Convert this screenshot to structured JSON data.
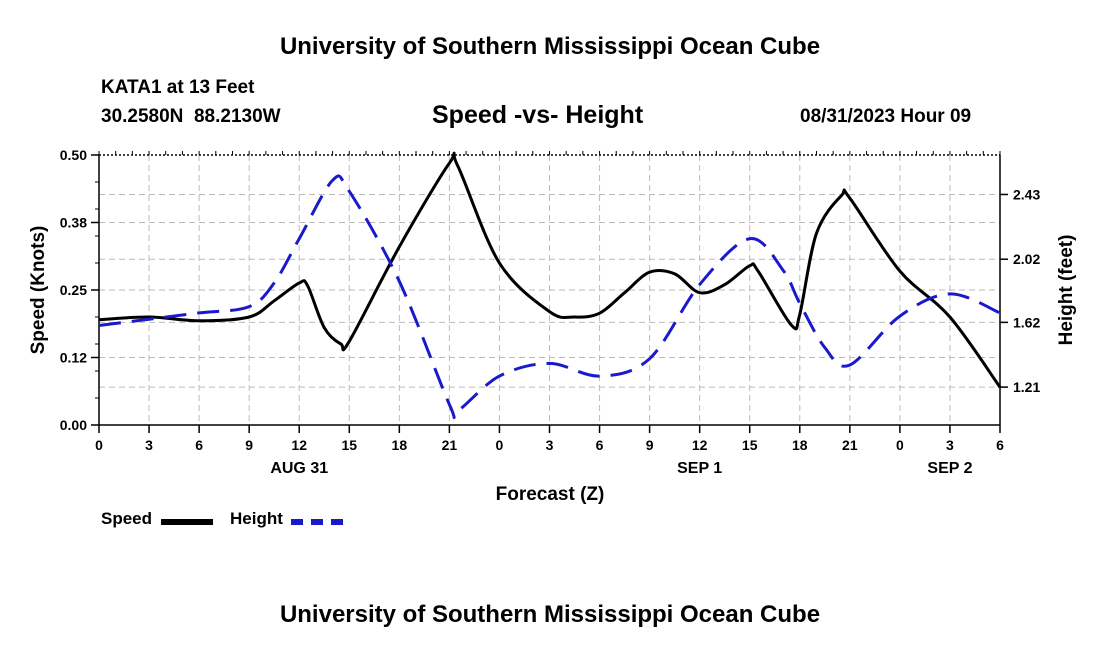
{
  "page": {
    "title_top": "University of Southern Mississippi Ocean Cube",
    "title_bottom": "University of Southern Mississippi Ocean Cube",
    "station": "KATA1 at 13 Feet",
    "coords": "30.2580N  88.2130W",
    "subtitle": "Speed -vs- Height",
    "datetime": "08/31/2023 Hour 09"
  },
  "legend": {
    "speed_label": "Speed",
    "height_label": "Height"
  },
  "colors": {
    "speed": "#000000",
    "height": "#1a1acc",
    "grid": "#bbbbbb"
  },
  "chart_data": {
    "type": "line",
    "title": "Speed -vs- Height",
    "xlabel": "Forecast (Z)",
    "ylabel": "Speed (Knots)",
    "y2label": "Height (feet)",
    "x_unit": "hours since Aug 31 00Z",
    "xlim": [
      0,
      54
    ],
    "ylim": [
      0,
      0.5
    ],
    "y2lim": [
      0.97,
      2.68
    ],
    "x_ticks": [
      0,
      3,
      6,
      9,
      12,
      15,
      18,
      21,
      24,
      27,
      30,
      33,
      36,
      39,
      42,
      45,
      48,
      51,
      54
    ],
    "x_tick_labels": [
      "0",
      "3",
      "6",
      "9",
      "12",
      "15",
      "18",
      "21",
      "0",
      "3",
      "6",
      "9",
      "12",
      "15",
      "18",
      "21",
      "0",
      "3",
      "6"
    ],
    "date_labels": [
      {
        "x": 12,
        "label": "AUG 31"
      },
      {
        "x": 36,
        "label": "SEP 1"
      },
      {
        "x": 51,
        "label": "SEP 2"
      }
    ],
    "y_ticks": [
      0,
      0.125,
      0.25,
      0.375,
      0.5
    ],
    "y_tick_labels": [
      "0.00",
      "0.12",
      "0.25",
      "0.38",
      "0.50"
    ],
    "y2_ticks": [
      1.21,
      1.62,
      2.02,
      2.43
    ],
    "y2_tick_labels": [
      "1.21",
      "1.62",
      "2.02",
      "2.43"
    ],
    "series": [
      {
        "name": "Speed",
        "axis": "left",
        "style": "solid",
        "x": [
          0,
          3,
          6,
          9,
          10.5,
          12,
          12.5,
          13.5,
          14.5,
          15,
          18,
          21,
          21.5,
          24,
          27,
          28.5,
          30,
          31.5,
          33,
          34.5,
          36,
          37.5,
          39,
          39.5,
          41.5,
          42,
          43,
          44.5,
          45,
          48,
          51,
          54
        ],
        "values": [
          0.195,
          0.2,
          0.193,
          0.2,
          0.23,
          0.263,
          0.258,
          0.18,
          0.15,
          0.155,
          0.33,
          0.485,
          0.48,
          0.3,
          0.21,
          0.2,
          0.207,
          0.245,
          0.283,
          0.28,
          0.245,
          0.26,
          0.295,
          0.285,
          0.185,
          0.205,
          0.355,
          0.425,
          0.42,
          0.285,
          0.2,
          0.07
        ]
      },
      {
        "name": "Height",
        "axis": "right",
        "style": "dashed",
        "x": [
          0,
          3,
          6,
          9,
          10.5,
          12,
          14,
          15,
          18,
          21,
          21.5,
          24,
          27,
          30,
          33,
          36,
          39,
          41,
          42,
          43.5,
          45,
          48,
          51,
          54
        ],
        "values": [
          1.6,
          1.64,
          1.68,
          1.72,
          1.87,
          2.15,
          2.52,
          2.45,
          1.88,
          1.1,
          1.06,
          1.28,
          1.36,
          1.28,
          1.39,
          1.86,
          2.15,
          1.95,
          1.74,
          1.46,
          1.35,
          1.66,
          1.8,
          1.68
        ]
      }
    ]
  }
}
